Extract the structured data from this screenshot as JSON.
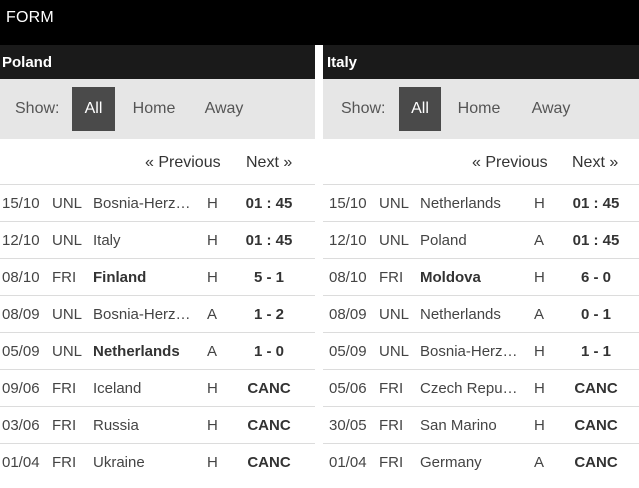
{
  "header": {
    "title": "FORM"
  },
  "filters": {
    "show_label": "Show:",
    "all": "All",
    "home": "Home",
    "away": "Away"
  },
  "pager": {
    "previous": "« Previous",
    "next": "Next »"
  },
  "poland": {
    "team": "Poland",
    "matches": [
      {
        "date": "15/10",
        "comp": "UNL",
        "opponent": "Bosnia-Herzegovina",
        "ha": "H",
        "score": "01 : 45",
        "bold": false
      },
      {
        "date": "12/10",
        "comp": "UNL",
        "opponent": "Italy",
        "ha": "H",
        "score": "01 : 45",
        "bold": false
      },
      {
        "date": "08/10",
        "comp": "FRI",
        "opponent": "Finland",
        "ha": "H",
        "score": "5 - 1",
        "bold": true
      },
      {
        "date": "08/09",
        "comp": "UNL",
        "opponent": "Bosnia-Herzegovina",
        "ha": "A",
        "score": "1 - 2",
        "bold": false
      },
      {
        "date": "05/09",
        "comp": "UNL",
        "opponent": "Netherlands",
        "ha": "A",
        "score": "1 - 0",
        "bold": true
      },
      {
        "date": "09/06",
        "comp": "FRI",
        "opponent": "Iceland",
        "ha": "H",
        "score": "CANC",
        "bold": false
      },
      {
        "date": "03/06",
        "comp": "FRI",
        "opponent": "Russia",
        "ha": "H",
        "score": "CANC",
        "bold": false
      },
      {
        "date": "01/04",
        "comp": "FRI",
        "opponent": "Ukraine",
        "ha": "H",
        "score": "CANC",
        "bold": false
      }
    ]
  },
  "italy": {
    "team": "Italy",
    "matches": [
      {
        "date": "15/10",
        "comp": "UNL",
        "opponent": "Netherlands",
        "ha": "H",
        "score": "01 : 45",
        "bold": false
      },
      {
        "date": "12/10",
        "comp": "UNL",
        "opponent": "Poland",
        "ha": "A",
        "score": "01 : 45",
        "bold": false
      },
      {
        "date": "08/10",
        "comp": "FRI",
        "opponent": "Moldova",
        "ha": "H",
        "score": "6 - 0",
        "bold": true
      },
      {
        "date": "08/09",
        "comp": "UNL",
        "opponent": "Netherlands",
        "ha": "A",
        "score": "0 - 1",
        "bold": false
      },
      {
        "date": "05/09",
        "comp": "UNL",
        "opponent": "Bosnia-Herzegovina",
        "ha": "H",
        "score": "1 - 1",
        "bold": false
      },
      {
        "date": "05/06",
        "comp": "FRI",
        "opponent": "Czech Republic",
        "ha": "H",
        "score": "CANC",
        "bold": false
      },
      {
        "date": "30/05",
        "comp": "FRI",
        "opponent": "San Marino",
        "ha": "H",
        "score": "CANC",
        "bold": false
      },
      {
        "date": "01/04",
        "comp": "FRI",
        "opponent": "Germany",
        "ha": "A",
        "score": "CANC",
        "bold": false
      }
    ]
  }
}
